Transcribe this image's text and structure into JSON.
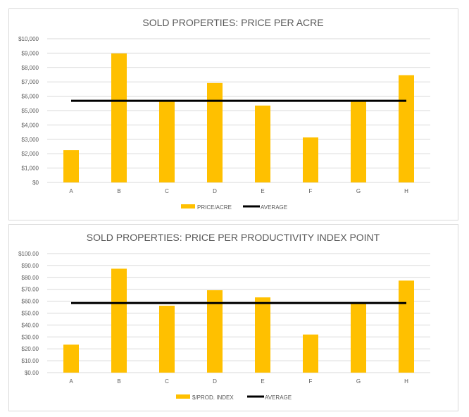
{
  "chart_data": [
    {
      "type": "bar",
      "title": "SOLD PROPERTIES: PRICE PER ACRE",
      "categories": [
        "A",
        "B",
        "C",
        "D",
        "E",
        "F",
        "G",
        "H"
      ],
      "series": [
        {
          "name": "PRICE/ACRE",
          "type": "bar",
          "values": [
            2250,
            8980,
            5650,
            6920,
            5350,
            3130,
            5650,
            7460
          ]
        },
        {
          "name": "AVERAGE",
          "type": "line",
          "values": [
            5680,
            5680,
            5680,
            5680,
            5680,
            5680,
            5680,
            5680
          ]
        }
      ],
      "yticks": [
        "$0",
        "$1,000",
        "$2,000",
        "$3,000",
        "$4,000",
        "$5,000",
        "$6,000",
        "$7,000",
        "$8,000",
        "$9,000",
        "$10,000"
      ],
      "ylim": [
        0,
        10000
      ],
      "grid": true,
      "legend": "bottom",
      "colors": {
        "bar": "#FFC000",
        "line": "#000000"
      }
    },
    {
      "type": "bar",
      "title": "SOLD PROPERTIES: PRICE PER PRODUCTIVITY INDEX  POINT",
      "categories": [
        "A",
        "B",
        "C",
        "D",
        "E",
        "F",
        "G",
        "H"
      ],
      "series": [
        {
          "name": "$/PROD. INDEX",
          "type": "bar",
          "values": [
            23.5,
            87.3,
            56.2,
            69.2,
            63.2,
            32.0,
            58.0,
            77.3
          ]
        },
        {
          "name": "AVERAGE",
          "type": "line",
          "values": [
            58.4,
            58.4,
            58.4,
            58.4,
            58.4,
            58.4,
            58.4,
            58.4
          ]
        }
      ],
      "yticks": [
        "$0.00",
        "$10.00",
        "$20.00",
        "$30.00",
        "$40.00",
        "$50.00",
        "$60.00",
        "$70.00",
        "$80.00",
        "$90.00",
        "$100.00"
      ],
      "ylim": [
        0,
        100
      ],
      "grid": true,
      "legend": "bottom",
      "colors": {
        "bar": "#FFC000",
        "line": "#000000"
      }
    }
  ]
}
